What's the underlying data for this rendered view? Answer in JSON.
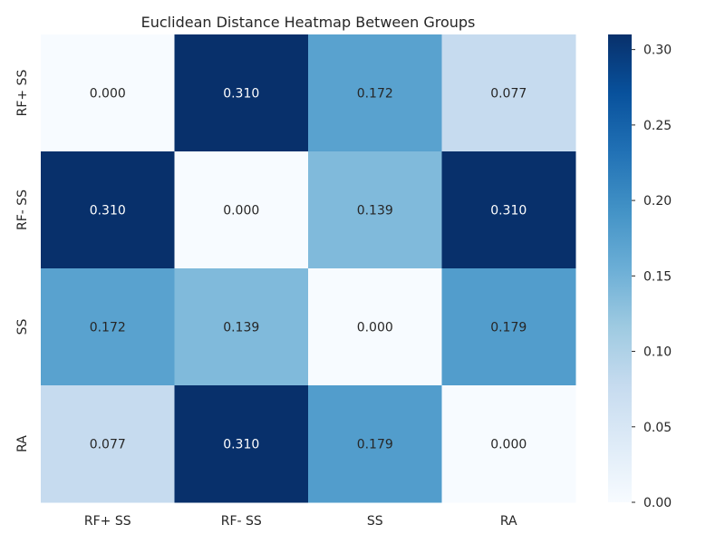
{
  "chart_data": {
    "type": "heatmap",
    "title": "Euclidean Distance Heatmap Between Groups",
    "xlabel": "",
    "ylabel": "",
    "x_categories": [
      "RF+ SS",
      "RF- SS",
      "SS",
      "RA"
    ],
    "y_categories": [
      "RF+ SS",
      "RF- SS",
      "SS",
      "RA"
    ],
    "values": [
      [
        0.0,
        0.31,
        0.172,
        0.077
      ],
      [
        0.31,
        0.0,
        0.139,
        0.31
      ],
      [
        0.172,
        0.139,
        0.0,
        0.179
      ],
      [
        0.077,
        0.31,
        0.179,
        0.0
      ]
    ],
    "value_format": "0.000",
    "colormap": "Blues",
    "colormap_stops": [
      "#f7fbff",
      "#deebf7",
      "#c6dbef",
      "#9ecae1",
      "#6baed6",
      "#4292c6",
      "#2171b5",
      "#08519c",
      "#08306b"
    ],
    "vmin": 0.0,
    "vmax": 0.31,
    "colorbar": {
      "ticks": [
        0.0,
        0.05,
        0.1,
        0.15,
        0.2,
        0.25,
        0.3
      ],
      "tick_labels": [
        "0.00",
        "0.05",
        "0.10",
        "0.15",
        "0.20",
        "0.25",
        "0.30"
      ]
    }
  }
}
